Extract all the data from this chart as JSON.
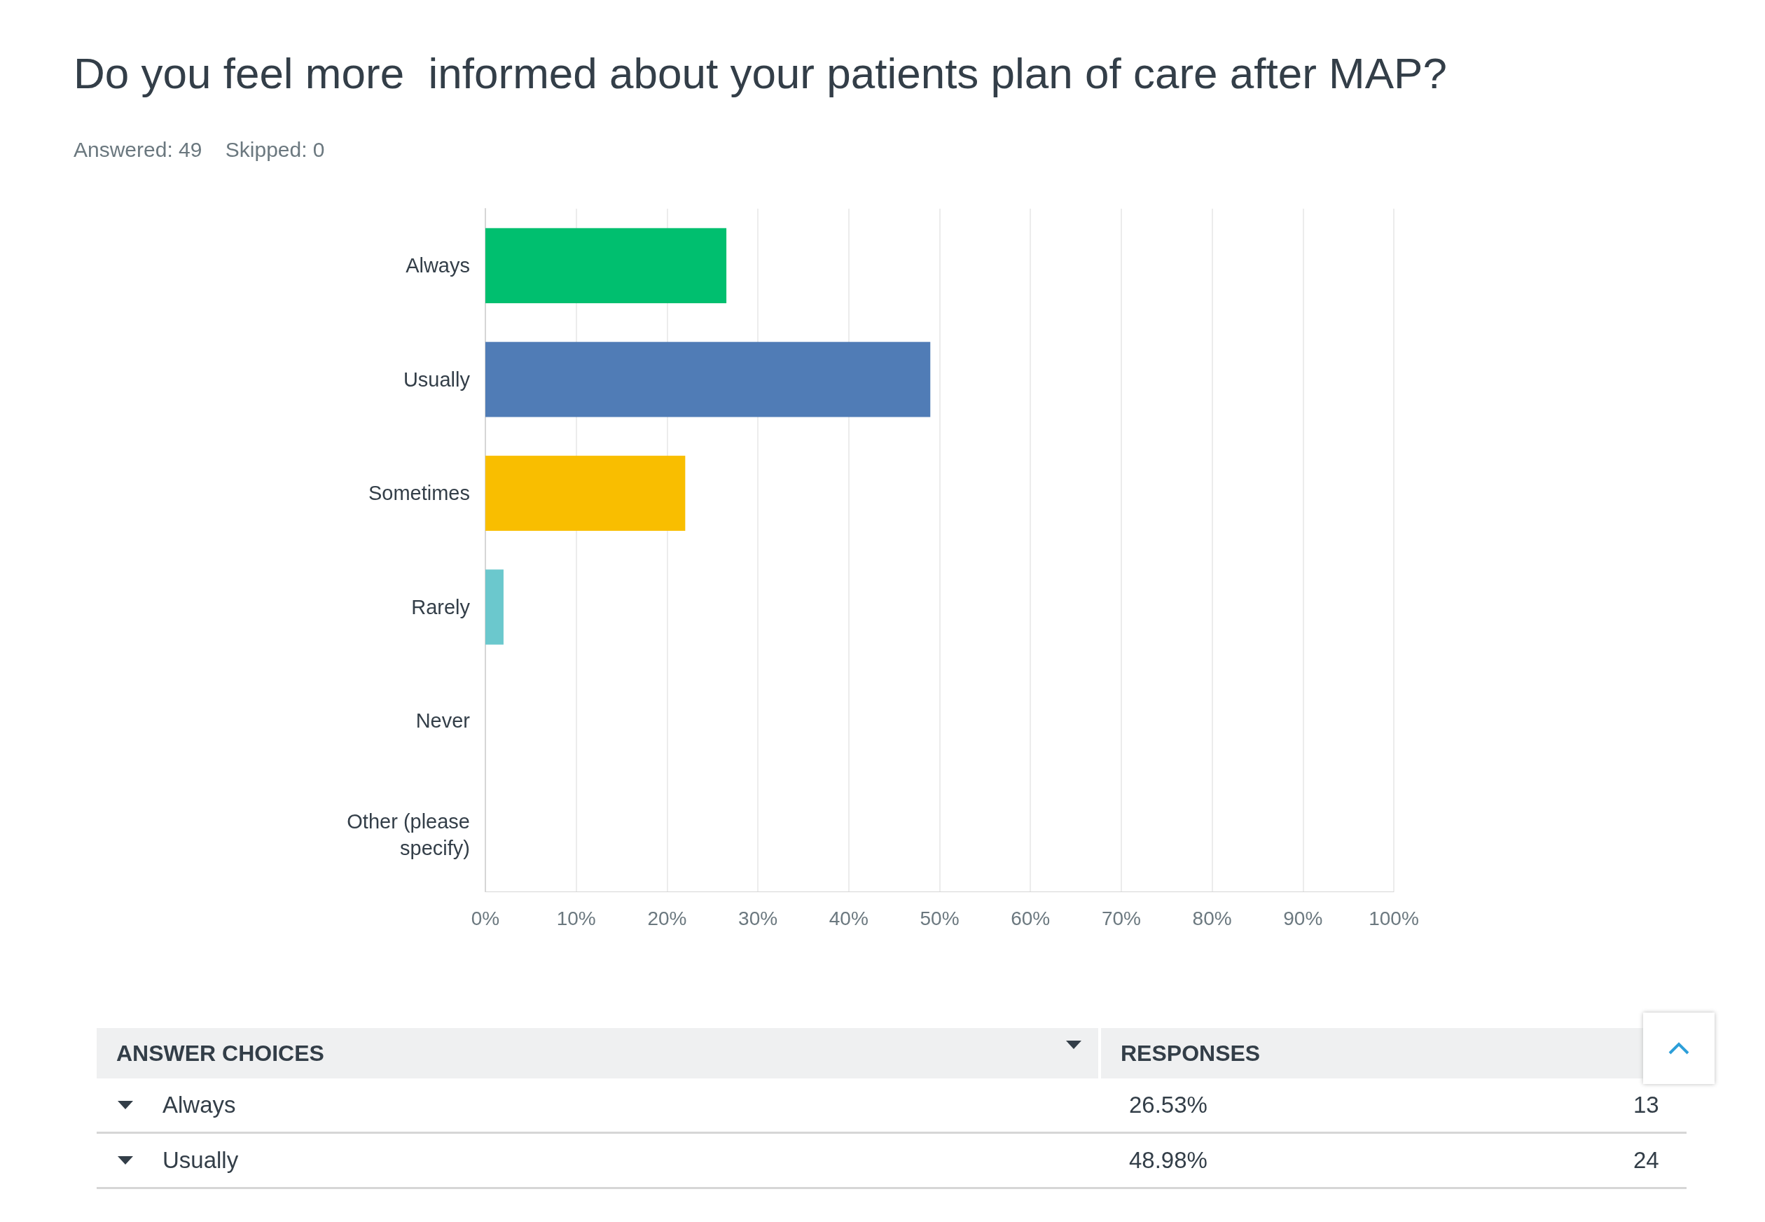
{
  "chart_data": {
    "type": "bar",
    "orientation": "horizontal",
    "title": "Do you feel more  informed about your patients plan of care after MAP?",
    "subtitle": "Answered: 49    Skipped: 0",
    "categories": [
      "Always",
      "Usually",
      "Sometimes",
      "Rarely",
      "Never",
      "Other (please\nspecify)"
    ],
    "values": [
      26.53,
      48.98,
      22,
      2,
      0,
      0
    ],
    "colors": [
      "#00bf6f",
      "#507cb6",
      "#f9be00",
      "#6bc8cd",
      "#a0a0a0",
      "#d0d0d0"
    ],
    "xlim": [
      0,
      100
    ],
    "xticks": [
      {
        "value": 0,
        "label": "0%"
      },
      {
        "value": 10,
        "label": "10%"
      },
      {
        "value": 20,
        "label": "20%"
      },
      {
        "value": 30,
        "label": "30%"
      },
      {
        "value": 40,
        "label": "40%"
      },
      {
        "value": 50,
        "label": "50%"
      },
      {
        "value": 60,
        "label": "60%"
      },
      {
        "value": 70,
        "label": "70%"
      },
      {
        "value": 80,
        "label": "80%"
      },
      {
        "value": 90,
        "label": "90%"
      },
      {
        "value": 100,
        "label": "100%"
      }
    ],
    "grid": "x",
    "annotations": [
      "ANSWER CHOICES",
      "RESPONSES",
      "26.53%",
      "13",
      "48.98%",
      "24"
    ]
  }
}
